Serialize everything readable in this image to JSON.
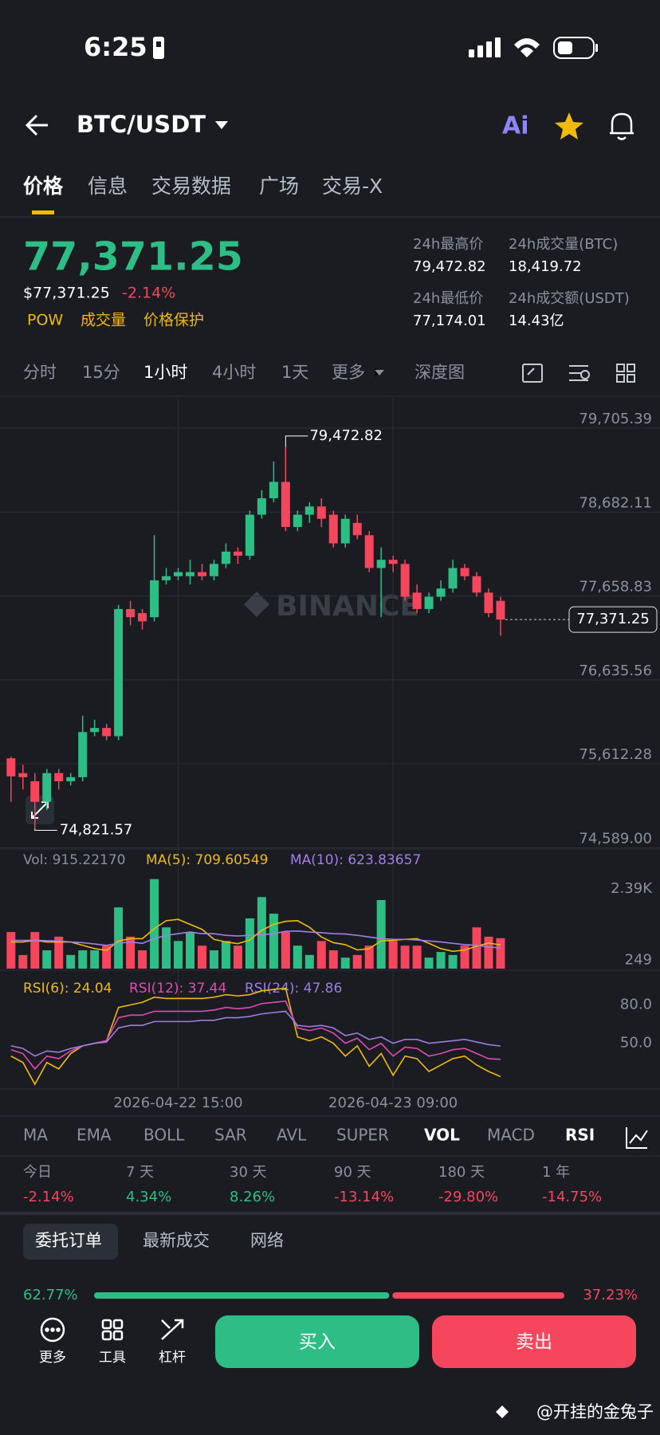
{
  "status_bar": {
    "time": "6:25"
  },
  "header": {
    "pair": "BTC/USDT",
    "ai": "Ai"
  },
  "tabs": [
    "价格",
    "信息",
    "交易数据",
    "广场",
    "交易-X"
  ],
  "price": {
    "last": "77,371.25",
    "usd": "$77,371.25",
    "change": "-2.14%",
    "tags": [
      "POW",
      "成交量",
      "价格保护"
    ]
  },
  "stats": [
    {
      "label": "24h最高价",
      "value": "79,472.82"
    },
    {
      "label": "24h成交量(BTC)",
      "value": "18,419.72"
    },
    {
      "label": "24h最低价",
      "value": "77,174.01"
    },
    {
      "label": "24h成交额(USDT)",
      "value": "14.43亿"
    }
  ],
  "intervals": [
    "分时",
    "15分",
    "1小时",
    "4小时",
    "1天",
    "更多",
    "深度图"
  ],
  "chart": {
    "price": {
      "type": "candlestick",
      "up_color": "#2ebd85",
      "down_color": "#f6465d",
      "watermark": "BINANCE",
      "categories": [
        null,
        null,
        null,
        null,
        null,
        null,
        null,
        null,
        null,
        null,
        null,
        null,
        null,
        null,
        "2026-04-22 15:00",
        null,
        null,
        null,
        null,
        null,
        null,
        null,
        null,
        null,
        null,
        null,
        null,
        null,
        null,
        null,
        null,
        null,
        "2026-04-23 09:00",
        null,
        null,
        null,
        null,
        null,
        null,
        null,
        null,
        null
      ],
      "open": [
        75680,
        75500,
        75400,
        75150,
        75500,
        75400,
        75450,
        76000,
        76050,
        75950,
        77500,
        77450,
        77400,
        77850,
        77900,
        77900,
        77950,
        77900,
        78050,
        78200,
        78150,
        78650,
        78850,
        79050,
        78500,
        78650,
        78750,
        78650,
        78300,
        78550,
        78400,
        78000,
        78100,
        78050,
        77700,
        77500,
        77650,
        77750,
        78000,
        77900,
        77700,
        77600
      ],
      "high": [
        75700,
        75600,
        75500,
        75550,
        75550,
        75500,
        76200,
        76150,
        76100,
        77550,
        77600,
        77500,
        78400,
        78000,
        78000,
        78100,
        78050,
        78100,
        78300,
        78250,
        78700,
        78950,
        79300,
        79472.82,
        78700,
        78800,
        78850,
        78700,
        78650,
        78650,
        78450,
        78250,
        78150,
        78100,
        77800,
        77700,
        77850,
        78100,
        78050,
        77950,
        77750,
        77650
      ],
      "low": [
        75150,
        75300,
        74821.57,
        75050,
        75300,
        75350,
        75400,
        75950,
        75900,
        75900,
        77300,
        77250,
        77350,
        77800,
        77850,
        77800,
        77850,
        77850,
        78000,
        78050,
        78100,
        78600,
        78800,
        78450,
        78450,
        78550,
        78500,
        78250,
        78250,
        78350,
        77950,
        77400,
        77950,
        77600,
        77450,
        77450,
        77600,
        77700,
        77850,
        77650,
        77400,
        77174.01
      ],
      "close": [
        75460,
        75450,
        75150,
        75500,
        75400,
        75450,
        76000,
        76050,
        75950,
        77500,
        77400,
        77350,
        77850,
        77900,
        77950,
        77950,
        77900,
        78050,
        78200,
        78150,
        78650,
        78850,
        79050,
        78500,
        78650,
        78750,
        78600,
        78300,
        78600,
        78400,
        78000,
        78100,
        78050,
        77650,
        77500,
        77650,
        77750,
        78000,
        77900,
        77700,
        77450,
        77371.25
      ],
      "ylim": [
        74574,
        80065
      ],
      "yticks": [
        {
          "value": 79705.39,
          "label": "79,705.39"
        },
        {
          "value": 78682.11,
          "label": "78,682.11"
        },
        {
          "value": 77658.83,
          "label": "77,658.83"
        },
        {
          "value": 76635.56,
          "label": "76,635.56"
        },
        {
          "value": 75612.28,
          "label": "75,612.28"
        },
        {
          "value": 74589,
          "label": "74,589.00"
        }
      ],
      "grid": true,
      "high_label": "79,472.82",
      "low_label": "74,821.57",
      "last_label": "77,371.25"
    },
    "volume": {
      "type": "bar",
      "legend": "Vol: 915.22170",
      "values": [
        1100,
        410,
        1100,
        550,
        960,
        410,
        550,
        550,
        690,
        1840,
        960,
        550,
        2690,
        1240,
        830,
        1100,
        690,
        550,
        830,
        690,
        1510,
        2150,
        1650,
        1100,
        690,
        410,
        830,
        550,
        330,
        410,
        690,
        2060,
        830,
        690,
        690,
        330,
        500,
        410,
        690,
        1240,
        960,
        915.2217
      ],
      "series": [
        {
          "name": "MA(5): 709.60549",
          "color": "#f0b90b",
          "values": [
            800,
            800,
            850,
            800,
            800,
            800,
            700,
            600,
            550,
            830,
            900,
            900,
            1200,
            1440,
            1480,
            1330,
            1180,
            880,
            800,
            750,
            860,
            1150,
            1330,
            1420,
            1440,
            1240,
            950,
            780,
            720,
            560,
            600,
            830,
            850,
            880,
            900,
            760,
            600,
            520,
            560,
            670,
            770,
            709.60549
          ]
        },
        {
          "name": "MA(10): 623.83657",
          "color": "#a37ee6",
          "values": [
            850,
            850,
            850,
            840,
            830,
            800,
            780,
            740,
            700,
            760,
            800,
            760,
            900,
            1000,
            1050,
            1100,
            1050,
            1050,
            1000,
            980,
            1000,
            1020,
            1050,
            1120,
            1130,
            1100,
            1080,
            1050,
            1040,
            1000,
            950,
            900,
            880,
            880,
            860,
            830,
            800,
            760,
            720,
            700,
            650,
            623.83657
          ]
        }
      ],
      "ylim": [
        0,
        2850
      ],
      "yticks": [
        {
          "value": 2390,
          "label": "2.39K"
        },
        249
      ]
    },
    "rsi": {
      "type": "line",
      "series": [
        {
          "name": "RSI(6): 24.04",
          "color": "#f0b90b",
          "values": [
            40,
            35,
            18,
            35,
            30,
            42,
            48,
            50,
            52,
            78,
            80,
            82,
            86,
            85,
            85,
            85,
            85,
            86,
            88,
            87,
            88,
            91,
            92,
            93,
            55,
            52,
            55,
            50,
            40,
            48,
            32,
            42,
            25,
            40,
            38,
            28,
            33,
            38,
            40,
            33,
            28,
            24.04
          ]
        },
        {
          "name": "RSI(12): 37.44",
          "color": "#e04bb0",
          "values": [
            45,
            42,
            30,
            40,
            38,
            44,
            48,
            50,
            52,
            70,
            72,
            72,
            75,
            75,
            75,
            75,
            75,
            76,
            78,
            77,
            78,
            81,
            82,
            83,
            62,
            60,
            62,
            58,
            50,
            54,
            45,
            50,
            40,
            47,
            46,
            40,
            42,
            45,
            46,
            42,
            38,
            37.44
          ]
        },
        {
          "name": "RSI(24): 47.86",
          "color": "#9c7ce0",
          "values": [
            48,
            46,
            40,
            44,
            43,
            46,
            48,
            50,
            51,
            62,
            64,
            64,
            67,
            67,
            67,
            67,
            68,
            68,
            70,
            70,
            71,
            73,
            74,
            75,
            64,
            63,
            64,
            62,
            56,
            58,
            53,
            55,
            50,
            53,
            53,
            50,
            51,
            52,
            53,
            51,
            49,
            47.86
          ]
        }
      ],
      "ylim": [
        14.3,
        103.6
      ],
      "yticks": [
        {
          "value": 80,
          "label": "80.0"
        },
        {
          "value": 50,
          "label": "50.0"
        }
      ]
    }
  },
  "indicators": [
    "MA",
    "EMA",
    "BOLL",
    "SAR",
    "AVL",
    "SUPER",
    "VOL",
    "MACD",
    "RSI"
  ],
  "performance": {
    "periods": [
      "今日",
      "7 天",
      "30 天",
      "90 天",
      "180 天",
      "1 年"
    ],
    "changes": [
      "-2.14%",
      "4.34%",
      "8.26%",
      "-13.14%",
      "-29.80%",
      "-14.75%"
    ]
  },
  "order_tabs": [
    "委托订单",
    "最新成交",
    "网络"
  ],
  "depth": {
    "values": [
      62.77,
      37.23
    ],
    "value_labels": [
      "62.77%",
      "37.23%"
    ]
  },
  "bottom_nav": [
    "更多",
    "工具",
    "杠杆"
  ],
  "buttons": [
    "买入",
    "卖出"
  ],
  "watermark": "@开挂的金兔子"
}
